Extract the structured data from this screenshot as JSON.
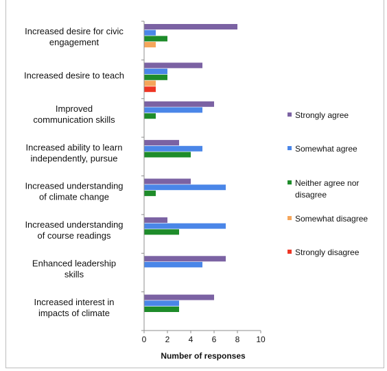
{
  "chart_data": {
    "type": "bar",
    "orientation": "horizontal",
    "title": "",
    "xlabel": "Number of responses",
    "ylabel": "",
    "xlim": [
      0,
      10
    ],
    "xticks": [
      0,
      2,
      4,
      6,
      8,
      10
    ],
    "grid": false,
    "legend_position": "right",
    "categories": [
      [
        "Increased desire for civic",
        "engagement"
      ],
      [
        "Increased desire to teach"
      ],
      [
        "Improved",
        "communication skills"
      ],
      [
        "Increased ability to learn",
        "independently, pursue"
      ],
      [
        "Increased understanding",
        "of climate change"
      ],
      [
        "Increased understanding",
        "of course readings"
      ],
      [
        "Enhanced leadership",
        "skills"
      ],
      [
        "Increased interest in",
        "impacts of climate"
      ]
    ],
    "series": [
      {
        "name": "Strongly agree",
        "color": "#7b62a3",
        "values": [
          8,
          5,
          6,
          3,
          4,
          2,
          7,
          6
        ]
      },
      {
        "name": "Somewhat agree",
        "color": "#4a86e8",
        "values": [
          1,
          2,
          5,
          5,
          7,
          7,
          5,
          3
        ]
      },
      {
        "name": "Neither agree nor disagree",
        "color": "#1e8c2a",
        "values": [
          2,
          2,
          1,
          4,
          1,
          3,
          0,
          3
        ]
      },
      {
        "name": "Somewhat disagree",
        "color": "#f5a65b",
        "values": [
          1,
          1,
          0,
          0,
          0,
          0,
          0,
          0
        ]
      },
      {
        "name": "Strongly disagree",
        "color": "#ee3524",
        "values": [
          0,
          1,
          0,
          0,
          0,
          0,
          0,
          0
        ]
      }
    ],
    "legend": [
      [
        "Strongly agree"
      ],
      [
        "Somewhat agree"
      ],
      [
        "Neither agree nor",
        "disagree"
      ],
      [
        "Somewhat disagree"
      ],
      [
        "Strongly disagree"
      ]
    ]
  }
}
